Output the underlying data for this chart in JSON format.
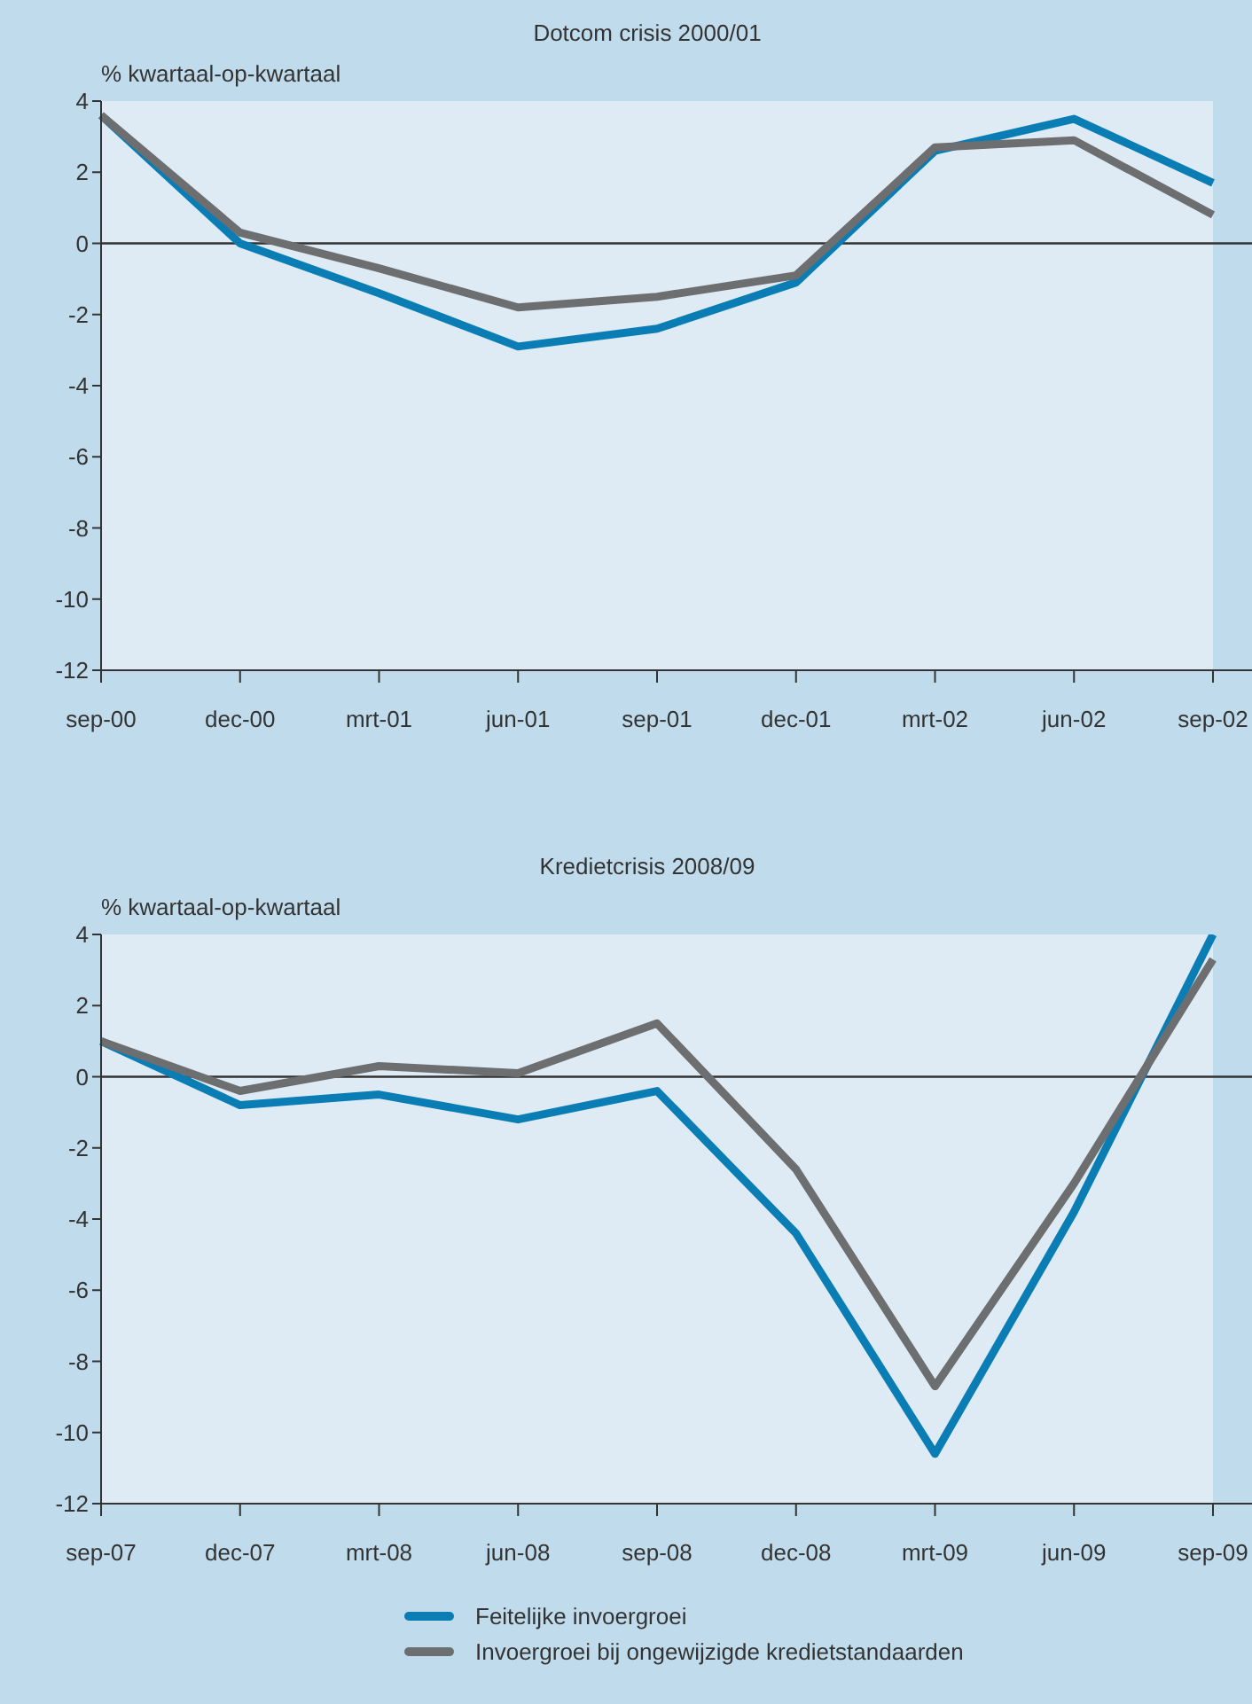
{
  "chart_data": [
    {
      "type": "line",
      "title": "Dotcom crisis 2000/01",
      "ylabel": "% kwartaal-op-kwartaal",
      "categories": [
        "sep-00",
        "dec-00",
        "mrt-01",
        "jun-01",
        "sep-01",
        "dec-01",
        "mrt-02",
        "jun-02",
        "sep-02"
      ],
      "ylim": [
        -12,
        4
      ],
      "yticks": [
        -12,
        -10,
        -8,
        -6,
        -4,
        -2,
        0,
        2,
        4
      ],
      "grid": false,
      "legend": false,
      "ref_lines": [
        {
          "axis": "y",
          "value": 0,
          "color": "#333333"
        }
      ],
      "series": [
        {
          "color": "#0a7db5",
          "values": [
            3.6,
            0.0,
            -1.4,
            -2.9,
            -2.4,
            -1.1,
            2.6,
            3.5,
            1.7
          ]
        },
        {
          "color": "#6d6e70",
          "values": [
            3.6,
            0.3,
            -0.7,
            -1.8,
            -1.5,
            -0.9,
            2.7,
            2.9,
            0.8
          ]
        }
      ]
    },
    {
      "type": "line",
      "title": "Kredietcrisis 2008/09",
      "ylabel": "% kwartaal-op-kwartaal",
      "categories": [
        "sep-07",
        "dec-07",
        "mrt-08",
        "jun-08",
        "sep-08",
        "dec-08",
        "mrt-09",
        "jun-09",
        "sep-09"
      ],
      "ylim": [
        -12,
        4
      ],
      "yticks": [
        -12,
        -10,
        -8,
        -6,
        -4,
        -2,
        0,
        2,
        4
      ],
      "grid": false,
      "legend": "bottom",
      "ref_lines": [
        {
          "axis": "y",
          "value": 0,
          "color": "#333333"
        }
      ],
      "series": [
        {
          "name": "Feitelijke invoergroei",
          "color": "#0a7db5",
          "values": [
            1.0,
            -0.8,
            -0.5,
            -1.2,
            -0.4,
            -4.4,
            -10.6,
            -3.8,
            4.0
          ]
        },
        {
          "name": "Invoergroei bij ongewijzigde kredietstandaarden",
          "color": "#6d6e70",
          "values": [
            1.0,
            -0.4,
            0.3,
            0.1,
            1.5,
            -2.6,
            -8.7,
            -3.0,
            3.3
          ]
        }
      ]
    }
  ]
}
